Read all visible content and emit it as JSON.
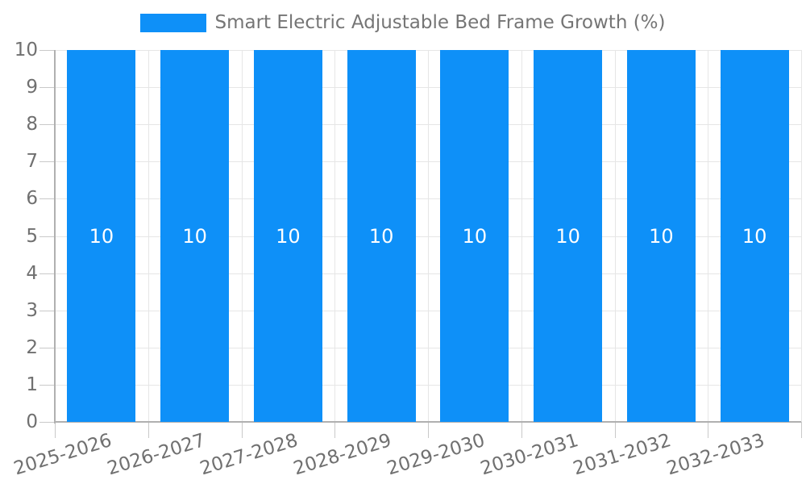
{
  "legend": {
    "label": "Smart Electric Adjustable Bed Frame Growth (%)"
  },
  "chart_data": {
    "type": "bar",
    "title": "Smart Electric Adjustable Bed Frame Growth (%)",
    "categories": [
      "2025-2026",
      "2026-2027",
      "2027-2028",
      "2028-2029",
      "2029-2030",
      "2030-2031",
      "2031-2032",
      "2032-2033"
    ],
    "series": [
      {
        "name": "Smart Electric Adjustable Bed Frame Growth (%)",
        "values": [
          10,
          10,
          10,
          10,
          10,
          10,
          10,
          10
        ]
      }
    ],
    "bar_value_labels": [
      "10",
      "10",
      "10",
      "10",
      "10",
      "10",
      "10",
      "10"
    ],
    "xlabel": "",
    "ylabel": "",
    "ylim": [
      0,
      10
    ],
    "yticks": [
      0,
      1,
      2,
      3,
      4,
      5,
      6,
      7,
      8,
      9,
      10
    ],
    "grid": true,
    "legend_position": "top",
    "x_tick_rotation_deg": -17,
    "colors": {
      "bar": "#0e90f8",
      "bar_label": "#ffffff",
      "grid": "#e6e6e6",
      "axis": "#b0b0b0",
      "tick": "#c9c9c9",
      "text": "#707070"
    }
  }
}
